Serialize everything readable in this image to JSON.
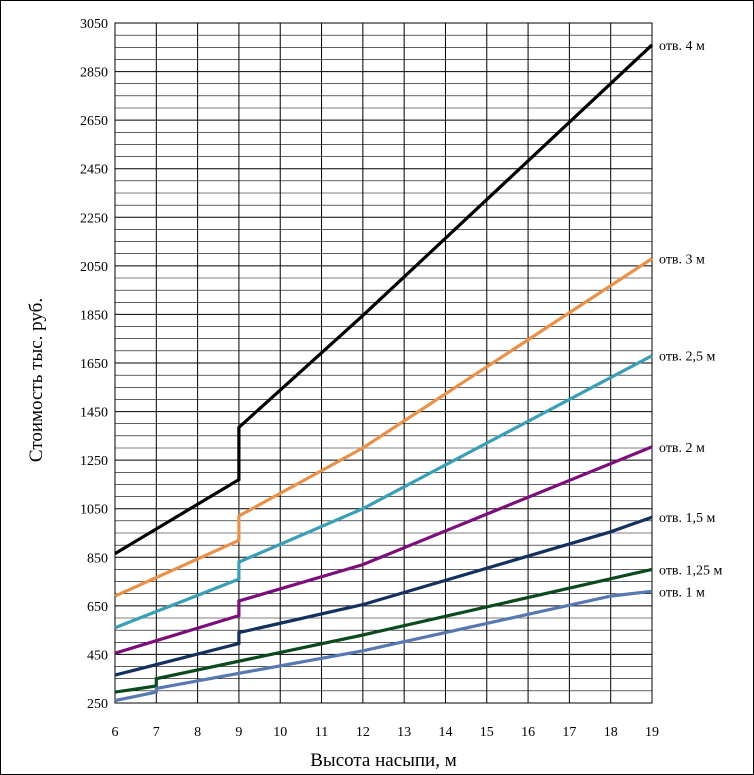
{
  "chart_data": {
    "type": "line",
    "xlabel": "Высота насыпи, м",
    "ylabel": "Стоимость тыс. руб.",
    "xlim": [
      6,
      19
    ],
    "ylim": [
      250,
      3050
    ],
    "xticks": [
      6,
      7,
      8,
      9,
      10,
      11,
      12,
      13,
      14,
      15,
      16,
      17,
      18,
      19
    ],
    "yticks": [
      250,
      450,
      650,
      850,
      1050,
      1250,
      1450,
      1650,
      1850,
      2050,
      2250,
      2450,
      2650,
      2850,
      3050
    ],
    "grid": true,
    "series": [
      {
        "name": "отв. 4 м",
        "color": "#000000",
        "points": [
          [
            6,
            865
          ],
          [
            9,
            1170
          ],
          [
            9,
            1385
          ],
          [
            12,
            1845
          ],
          [
            19,
            2960
          ]
        ]
      },
      {
        "name": "отв. 3 м",
        "color": "#E8914A",
        "points": [
          [
            6,
            690
          ],
          [
            9,
            920
          ],
          [
            9,
            1020
          ],
          [
            12,
            1300
          ],
          [
            19,
            2080
          ]
        ]
      },
      {
        "name": "отв. 2,5 м",
        "color": "#3A9FB5",
        "points": [
          [
            6,
            560
          ],
          [
            9,
            760
          ],
          [
            9,
            830
          ],
          [
            12,
            1050
          ],
          [
            19,
            1680
          ]
        ]
      },
      {
        "name": "отв. 2 м",
        "color": "#7A0F7A",
        "points": [
          [
            6,
            455
          ],
          [
            9,
            610
          ],
          [
            9,
            670
          ],
          [
            12,
            820
          ],
          [
            19,
            1305
          ]
        ]
      },
      {
        "name": "отв. 1,5 м",
        "color": "#14305E",
        "points": [
          [
            6,
            365
          ],
          [
            9,
            495
          ],
          [
            9,
            540
          ],
          [
            12,
            655
          ],
          [
            18,
            955
          ],
          [
            19,
            1015
          ]
        ]
      },
      {
        "name": "отв. 1,25 м",
        "color": "#0B4A1E",
        "points": [
          [
            6,
            295
          ],
          [
            7,
            320
          ],
          [
            7,
            350
          ],
          [
            12,
            530
          ],
          [
            19,
            800
          ]
        ]
      },
      {
        "name": "отв. 1 м",
        "color": "#5878B0",
        "points": [
          [
            6,
            260
          ],
          [
            7,
            295
          ],
          [
            7,
            310
          ],
          [
            12,
            465
          ],
          [
            18,
            690
          ],
          [
            19,
            710
          ]
        ]
      }
    ]
  }
}
